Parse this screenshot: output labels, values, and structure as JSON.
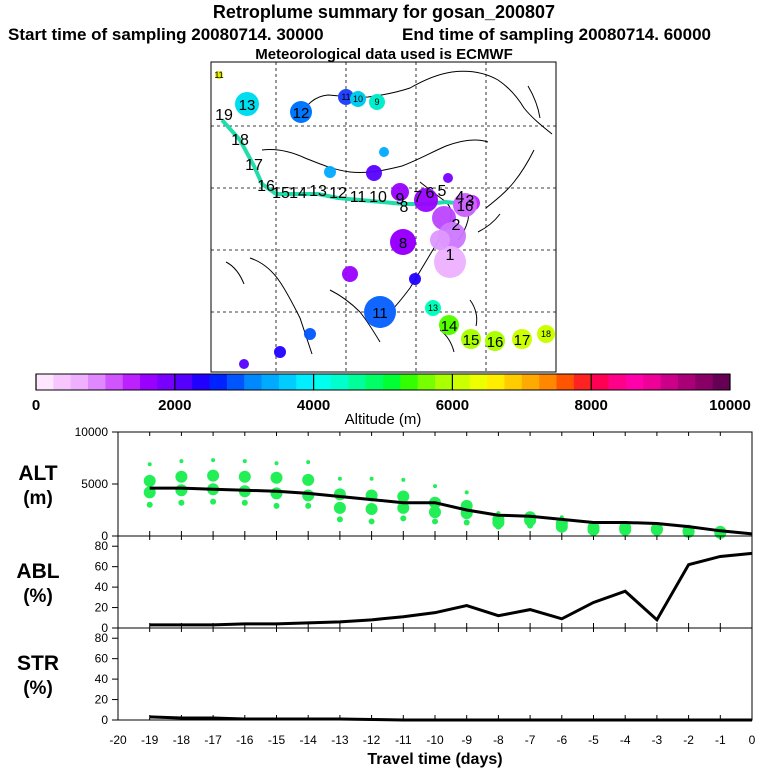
{
  "header": {
    "title": "Retroplume summary for gosan_200807",
    "start_label": "Start time of sampling 20080714. 30000",
    "end_label": "End time of sampling 20080714. 60000",
    "met_label": "Meteorological data used is ECMWF"
  },
  "colors": {
    "plume": "#22ee55",
    "line": "#000000"
  },
  "chart_data": [
    {
      "type": "map",
      "name": "retroplume-map",
      "description_labels": "day-number labels at plume cluster centroids",
      "track_days": [
        "19",
        "18",
        "17",
        "16",
        "15",
        "14",
        "13",
        "12",
        "11",
        "10",
        "9",
        "8",
        "7",
        "6",
        "5",
        "4",
        "3",
        "2",
        "1"
      ],
      "cluster_labels": [
        {
          "label": "11",
          "color": "#e6ee00"
        },
        {
          "label": "13",
          "color": "#00ddee"
        },
        {
          "label": "12",
          "color": "#0077ff"
        },
        {
          "label": "11",
          "color": "#2244ff"
        },
        {
          "label": "10",
          "color": "#00ccee"
        },
        {
          "label": "9",
          "color": "#00eecc"
        },
        {
          "label": "8",
          "color": "#9900ff"
        },
        {
          "label": "16",
          "color": "#cc66ff"
        },
        {
          "label": "11",
          "color": "#1166ff"
        },
        {
          "label": "13",
          "color": "#00ffbb"
        },
        {
          "label": "14",
          "color": "#55ff00"
        },
        {
          "label": "15",
          "color": "#aaff00"
        },
        {
          "label": "16",
          "color": "#aaff00"
        },
        {
          "label": "17",
          "color": "#ccff00"
        },
        {
          "label": "18",
          "color": "#ccff00"
        }
      ]
    },
    {
      "type": "colorbar",
      "name": "altitude-colorbar",
      "xlabel": "Altitude (m)",
      "range": [
        0,
        10000
      ],
      "tick_labels": [
        "0",
        "2000",
        "4000",
        "6000",
        "8000",
        "10000"
      ],
      "colors": [
        "#ffe6ff",
        "#f7c6ff",
        "#eeb0ff",
        "#e088ff",
        "#d055ff",
        "#bb22ff",
        "#9900ff",
        "#7700ff",
        "#5500ff",
        "#2200ff",
        "#0022ff",
        "#0055ff",
        "#0088ff",
        "#00aaff",
        "#00ccff",
        "#00eeff",
        "#00ffee",
        "#00ffcc",
        "#00ff99",
        "#00ff66",
        "#00ff33",
        "#33ff00",
        "#77ff00",
        "#aaff00",
        "#ccff00",
        "#eeff00",
        "#ffee00",
        "#ffcc00",
        "#ffaa00",
        "#ff8800",
        "#ff5500",
        "#ff2222",
        "#ff0055",
        "#ff0088",
        "#ff00aa",
        "#ee0099",
        "#cc0088",
        "#aa0077",
        "#880066",
        "#660055"
      ]
    },
    {
      "type": "line",
      "name": "alt-panel",
      "ylabel": "ALT\n(m)",
      "ylabel_line1": "ALT",
      "ylabel_line2": "(m)",
      "ylim": [
        0,
        10000
      ],
      "ytick_labels": [
        "0",
        "5000",
        "10000"
      ],
      "yticks": [
        0,
        5000,
        10000
      ],
      "x": [
        -19,
        -18,
        -17,
        -16,
        -15,
        -14,
        -13,
        -12,
        -11,
        -10,
        -9,
        -8,
        -7,
        -6,
        -5,
        -4,
        -3,
        -2,
        -1,
        0
      ],
      "values": [
        4600,
        4600,
        4500,
        4400,
        4300,
        4100,
        3800,
        3500,
        3200,
        3200,
        2500,
        2000,
        1900,
        1600,
        1300,
        1300,
        1200,
        900,
        500,
        200
      ],
      "plume_means": [
        {
          "x": -19,
          "y": [
            6900,
            5300,
            4200,
            3000
          ]
        },
        {
          "x": -18,
          "y": [
            7200,
            5700,
            4400,
            3200
          ]
        },
        {
          "x": -17,
          "y": [
            7300,
            5800,
            4500,
            3300
          ]
        },
        {
          "x": -16,
          "y": [
            7200,
            5700,
            4300,
            3200
          ]
        },
        {
          "x": -15,
          "y": [
            7000,
            5600,
            4100,
            2900
          ]
        },
        {
          "x": -14,
          "y": [
            7100,
            5400,
            3900,
            2900
          ]
        },
        {
          "x": -13,
          "y": [
            5500,
            4000,
            2700,
            1600
          ]
        },
        {
          "x": -12,
          "y": [
            5500,
            3900,
            2600,
            1400
          ]
        },
        {
          "x": -11,
          "y": [
            5400,
            3800,
            2700,
            1700
          ]
        },
        {
          "x": -10,
          "y": [
            4800,
            3200,
            2300,
            1400
          ]
        },
        {
          "x": -9,
          "y": [
            4200,
            2900,
            2200,
            1300
          ]
        },
        {
          "x": -8,
          "y": [
            2200,
            1600,
            1300,
            900
          ]
        },
        {
          "x": -7,
          "y": [
            2100,
            1800,
            1500,
            1000
          ]
        },
        {
          "x": -6,
          "y": [
            1800,
            1200,
            900,
            600
          ]
        },
        {
          "x": -5,
          "y": [
            1200,
            800,
            600,
            400
          ]
        },
        {
          "x": -4,
          "y": [
            1100,
            800,
            600,
            400
          ]
        },
        {
          "x": -3,
          "y": [
            1000,
            700,
            600,
            500
          ]
        },
        {
          "x": -2,
          "y": [
            800,
            500,
            400,
            300
          ]
        },
        {
          "x": -1,
          "y": [
            500,
            400,
            300,
            200
          ]
        }
      ]
    },
    {
      "type": "line",
      "name": "abl-panel",
      "ylabel_line1": "ABL",
      "ylabel_line2": "(%)",
      "ylim": [
        0,
        90
      ],
      "ytick_labels": [
        "0",
        "20",
        "40",
        "60",
        "80"
      ],
      "yticks": [
        0,
        20,
        40,
        60,
        80
      ],
      "x": [
        -19,
        -18,
        -17,
        -16,
        -15,
        -14,
        -13,
        -12,
        -11,
        -10,
        -9,
        -8,
        -7,
        -6,
        -5,
        -4,
        -3,
        -2,
        -1,
        0
      ],
      "values": [
        3,
        3,
        3,
        4,
        4,
        5,
        6,
        8,
        11,
        15,
        22,
        12,
        18,
        9,
        25,
        36,
        8,
        62,
        70,
        73
      ]
    },
    {
      "type": "line",
      "name": "str-panel",
      "ylabel_line1": "STR",
      "ylabel_line2": "(%)",
      "ylim": [
        0,
        90
      ],
      "ytick_labels": [
        "0",
        "20",
        "40",
        "60",
        "80"
      ],
      "yticks": [
        0,
        20,
        40,
        60,
        80
      ],
      "x": [
        -19,
        -18,
        -17,
        -16,
        -15,
        -14,
        -13,
        -12,
        -11,
        -10,
        -9,
        -8,
        -7,
        -6,
        -5,
        -4,
        -3,
        -2,
        -1,
        0
      ],
      "values": [
        3,
        2,
        2,
        1,
        1,
        1,
        1,
        0.5,
        0,
        0,
        0,
        0,
        0,
        0,
        0,
        0,
        0,
        0,
        0,
        0
      ]
    }
  ],
  "x_axis": {
    "label": "Travel time (days)",
    "range": [
      -20,
      0
    ],
    "tick_labels": [
      "-20",
      "-19",
      "-18",
      "-17",
      "-16",
      "-15",
      "-14",
      "-13",
      "-12",
      "-11",
      "-10",
      "-9",
      "-8",
      "-7",
      "-6",
      "-5",
      "-4",
      "-3",
      "-2",
      "-1",
      "0"
    ],
    "ticks": [
      -20,
      -19,
      -18,
      -17,
      -16,
      -15,
      -14,
      -13,
      -12,
      -11,
      -10,
      -9,
      -8,
      -7,
      -6,
      -5,
      -4,
      -3,
      -2,
      -1,
      0
    ]
  }
}
